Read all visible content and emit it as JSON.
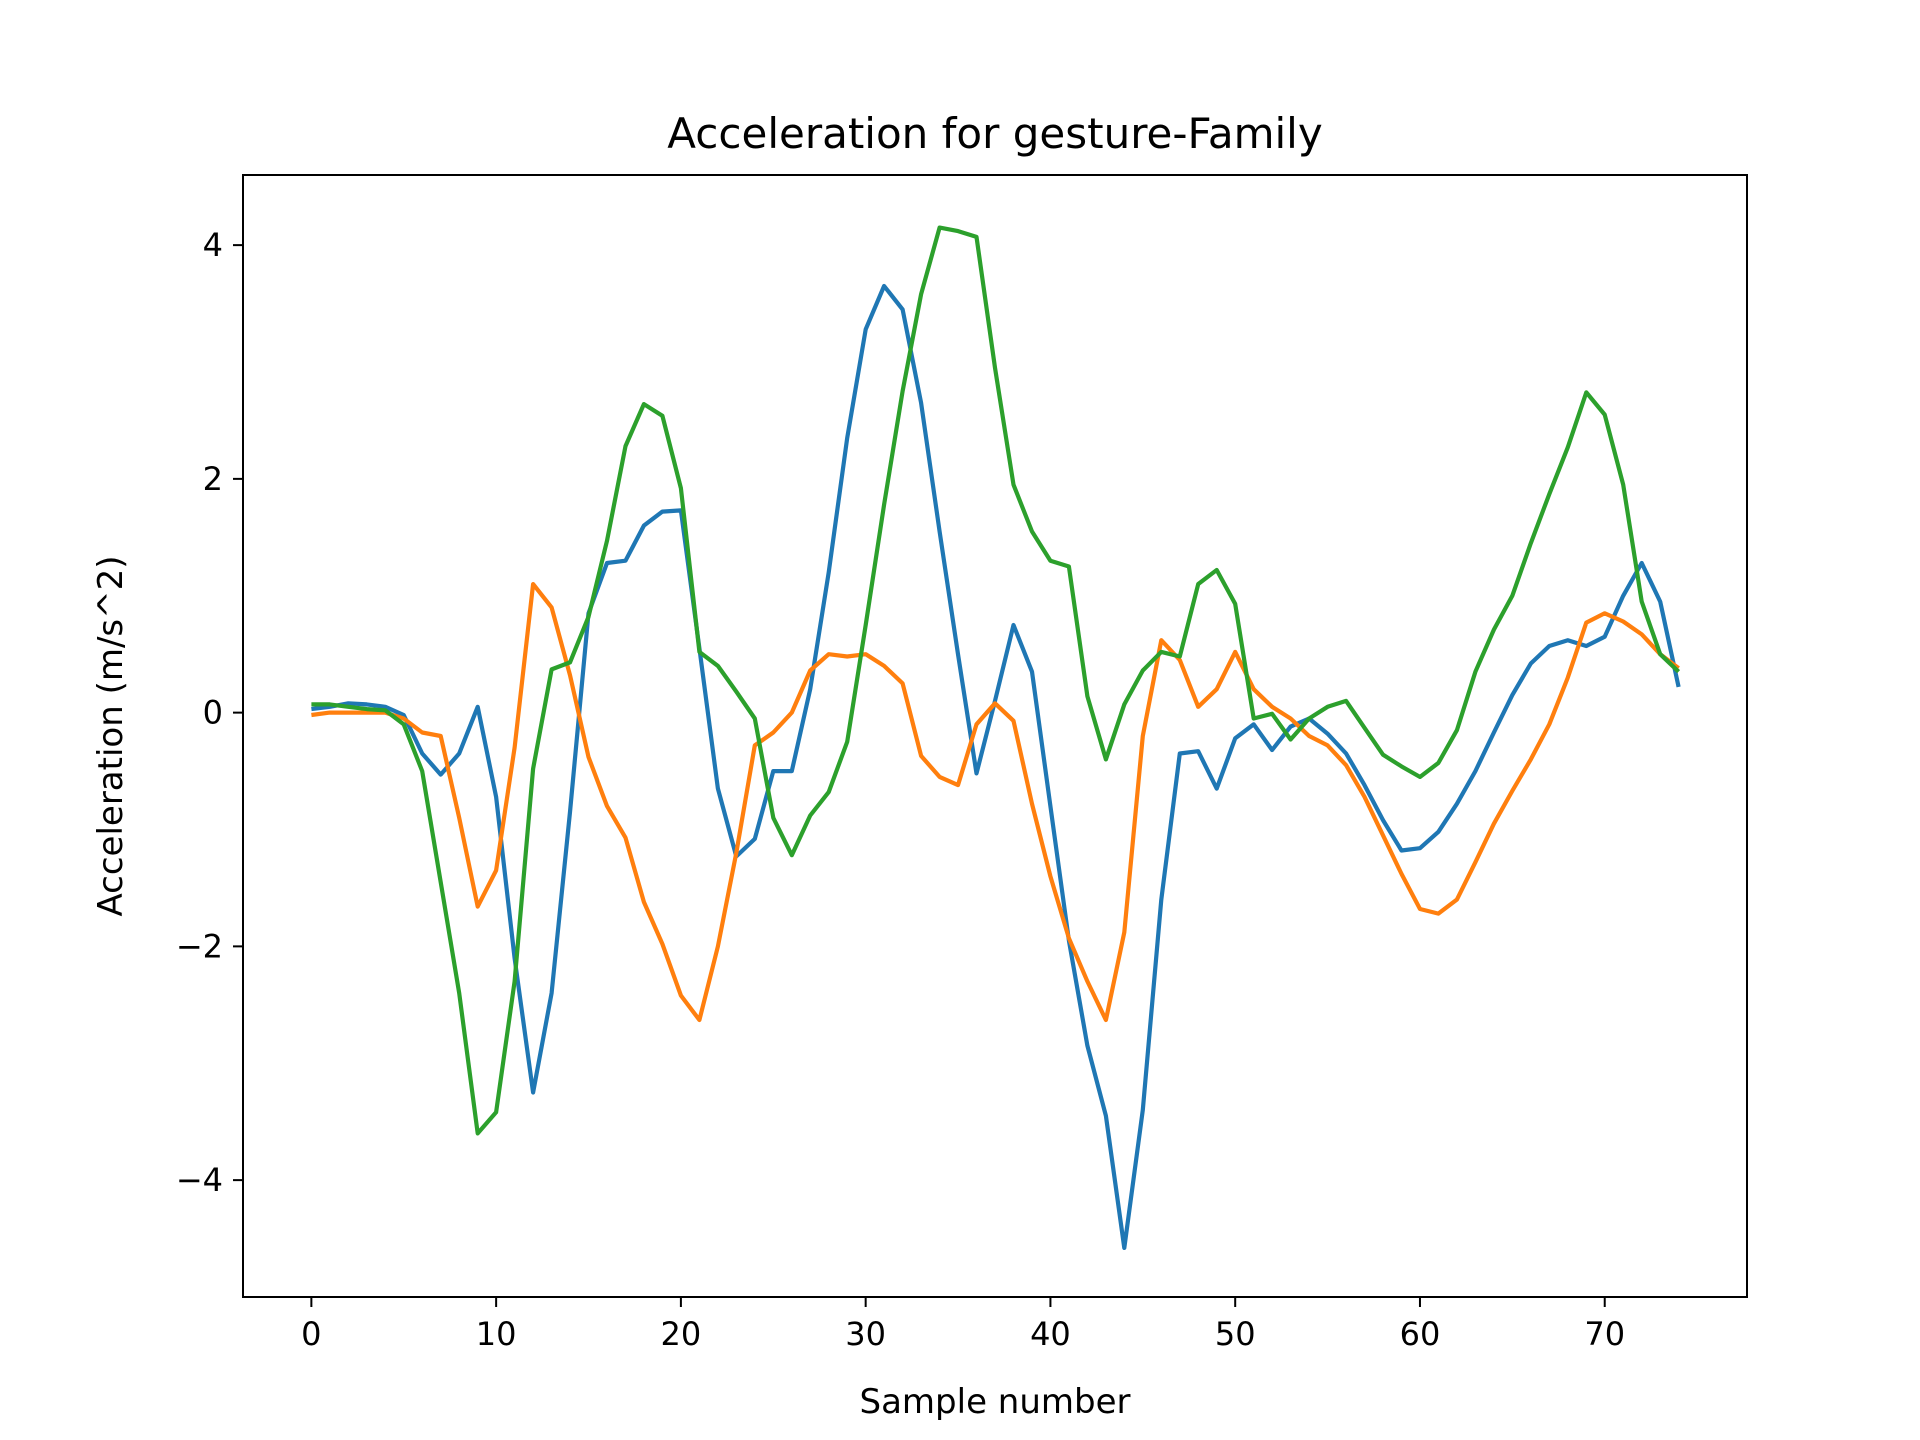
{
  "chart_data": {
    "type": "line",
    "title": "Acceleration for gesture-Family",
    "xlabel": "Sample number",
    "ylabel": "Acceleration (m/s^2)",
    "xlim": [
      -3.7,
      77.7
    ],
    "ylim": [
      -5.0,
      4.6
    ],
    "xticks": [
      0,
      10,
      20,
      30,
      40,
      50,
      60,
      70
    ],
    "xtick_labels": [
      "0",
      "10",
      "20",
      "30",
      "40",
      "50",
      "60",
      "70"
    ],
    "yticks": [
      -4,
      -2,
      0,
      2,
      4
    ],
    "ytick_labels": [
      "−4",
      "−2",
      "0",
      "2",
      "4"
    ],
    "grid": false,
    "colors": [
      "#1f77b4",
      "#ff7f0e",
      "#2ca02c"
    ],
    "series": [
      {
        "values": [
          0.03,
          0.05,
          0.08,
          0.07,
          0.05,
          -0.02,
          -0.35,
          -0.53,
          -0.35,
          0.05,
          -0.72,
          -2.1,
          -3.25,
          -2.4,
          -0.85,
          0.85,
          1.28,
          1.3,
          1.6,
          1.72,
          1.73,
          0.55,
          -0.65,
          -1.23,
          -1.08,
          -0.5,
          -0.5,
          0.2,
          1.2,
          2.35,
          3.28,
          3.65,
          3.45,
          2.65,
          1.55,
          0.5,
          -0.52,
          0.1,
          0.75,
          0.35,
          -0.8,
          -1.95,
          -2.85,
          -3.45,
          -4.58,
          -3.4,
          -1.6,
          -0.35,
          -0.33,
          -0.65,
          -0.22,
          -0.1,
          -0.32,
          -0.12,
          -0.05,
          -0.18,
          -0.35,
          -0.62,
          -0.92,
          -1.18,
          -1.16,
          -1.02,
          -0.78,
          -0.5,
          -0.17,
          0.15,
          0.42,
          0.57,
          0.62,
          0.57,
          0.65,
          1.0,
          1.28,
          0.95,
          0.22
        ]
      },
      {
        "values": [
          -0.02,
          0.0,
          0.0,
          0.0,
          0.0,
          -0.05,
          -0.17,
          -0.2,
          -0.9,
          -1.66,
          -1.35,
          -0.3,
          1.1,
          0.9,
          0.32,
          -0.38,
          -0.8,
          -1.07,
          -1.62,
          -1.98,
          -2.42,
          -2.63,
          -2.0,
          -1.2,
          -0.28,
          -0.17,
          0.0,
          0.36,
          0.5,
          0.48,
          0.5,
          0.4,
          0.25,
          -0.37,
          -0.55,
          -0.62,
          -0.1,
          0.08,
          -0.07,
          -0.78,
          -1.4,
          -1.93,
          -2.3,
          -2.63,
          -1.88,
          -0.2,
          0.62,
          0.45,
          0.05,
          0.2,
          0.52,
          0.2,
          0.05,
          -0.05,
          -0.2,
          -0.28,
          -0.45,
          -0.72,
          -1.05,
          -1.38,
          -1.68,
          -1.72,
          -1.6,
          -1.28,
          -0.95,
          -0.67,
          -0.4,
          -0.1,
          0.3,
          0.77,
          0.85,
          0.78,
          0.67,
          0.5,
          0.38
        ]
      },
      {
        "values": [
          0.07,
          0.07,
          0.05,
          0.03,
          0.02,
          -0.1,
          -0.5,
          -1.45,
          -2.4,
          -3.6,
          -3.42,
          -2.3,
          -0.48,
          0.37,
          0.43,
          0.82,
          1.47,
          2.28,
          2.64,
          2.54,
          1.92,
          0.52,
          0.4,
          0.18,
          -0.05,
          -0.9,
          -1.22,
          -0.88,
          -0.68,
          -0.25,
          0.75,
          1.78,
          2.75,
          3.58,
          4.15,
          4.12,
          4.07,
          2.95,
          1.95,
          1.55,
          1.3,
          1.25,
          0.14,
          -0.4,
          0.07,
          0.36,
          0.52,
          0.48,
          1.1,
          1.22,
          0.93,
          -0.05,
          -0.01,
          -0.23,
          -0.05,
          0.05,
          0.1,
          -0.13,
          -0.36,
          -0.46,
          -0.55,
          -0.43,
          -0.15,
          0.35,
          0.71,
          1.0,
          1.45,
          1.87,
          2.27,
          2.74,
          2.55,
          1.95,
          0.95,
          0.5,
          0.35
        ]
      }
    ]
  }
}
